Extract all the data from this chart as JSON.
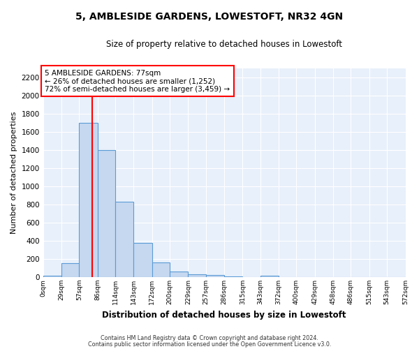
{
  "title": "5, AMBLESIDE GARDENS, LOWESTOFT, NR32 4GN",
  "subtitle": "Size of property relative to detached houses in Lowestoft",
  "xlabel": "Distribution of detached houses by size in Lowestoft",
  "ylabel": "Number of detached properties",
  "bar_heights": [
    15,
    155,
    1700,
    1400,
    830,
    380,
    160,
    65,
    30,
    20,
    10,
    0,
    15,
    0,
    0,
    0,
    0,
    0,
    0,
    0
  ],
  "bin_edges": [
    0,
    29,
    57,
    86,
    114,
    143,
    172,
    200,
    229,
    257,
    286,
    315,
    343,
    372,
    400,
    429,
    458,
    486,
    515,
    543,
    572
  ],
  "tick_labels": [
    "0sqm",
    "29sqm",
    "57sqm",
    "86sqm",
    "114sqm",
    "143sqm",
    "172sqm",
    "200sqm",
    "229sqm",
    "257sqm",
    "286sqm",
    "315sqm",
    "343sqm",
    "372sqm",
    "400sqm",
    "429sqm",
    "458sqm",
    "486sqm",
    "515sqm",
    "543sqm",
    "572sqm"
  ],
  "bar_color": "#c5d8f0",
  "bar_edge_color": "#5b9bd5",
  "vline_x": 77,
  "vline_color": "red",
  "annotation_line1": "5 AMBLESIDE GARDENS: 77sqm",
  "annotation_line2": "← 26% of detached houses are smaller (1,252)",
  "annotation_line3": "72% of semi-detached houses are larger (3,459) →",
  "annotation_box_color": "white",
  "annotation_box_edge_color": "red",
  "ylim": [
    0,
    2300
  ],
  "yticks": [
    0,
    200,
    400,
    600,
    800,
    1000,
    1200,
    1400,
    1600,
    1800,
    2000,
    2200
  ],
  "footer_line1": "Contains HM Land Registry data © Crown copyright and database right 2024.",
  "footer_line2": "Contains public sector information licensed under the Open Government Licence v3.0.",
  "plot_bg_color": "#e8f0fb",
  "fig_bg_color": "#ffffff",
  "grid_color": "#ffffff",
  "fig_width": 6.0,
  "fig_height": 5.0
}
